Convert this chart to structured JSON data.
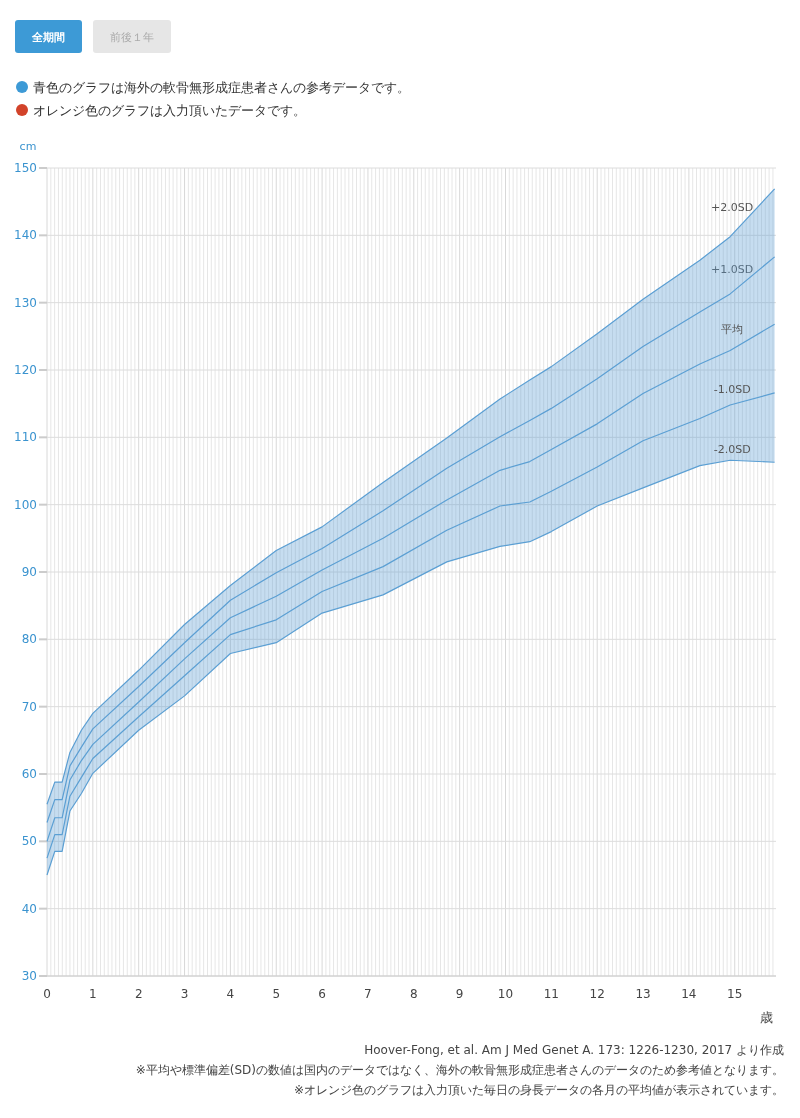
{
  "chart_data": {
    "type": "line",
    "x": [
      0,
      0.17,
      0.33,
      0.5,
      0.75,
      1,
      2,
      3,
      4,
      5,
      6,
      7.33,
      8.72,
      9.88,
      10.53,
      11,
      12,
      13,
      14.24,
      14.9,
      15.87
    ],
    "series": [
      {
        "name": "+2.0SD",
        "color": "#5b9fd3",
        "values": [
          55.5,
          58.8,
          58.8,
          63.2,
          66.5,
          69,
          75.4,
          82.2,
          88,
          93.2,
          96.7,
          103.3,
          109.9,
          115.7,
          118.5,
          120.5,
          125.4,
          130.5,
          136.3,
          139.8,
          146.9
        ]
      },
      {
        "name": "+1.0SD",
        "color": "#5b9fd3",
        "values": [
          52.8,
          56.2,
          56.2,
          61.2,
          64,
          66.7,
          73,
          79.5,
          85.8,
          89.9,
          93.5,
          99.1,
          105.4,
          110.1,
          112.5,
          114.3,
          118.7,
          123.5,
          128.6,
          131.3,
          136.8
        ]
      },
      {
        "name": "平均",
        "color": "#5b9fd3",
        "values": [
          50,
          53.5,
          53.5,
          59.1,
          62,
          64.4,
          70.7,
          77.1,
          83.2,
          86.4,
          90.3,
          95,
          100.7,
          105.1,
          106.4,
          108.2,
          112,
          116.5,
          120.9,
          122.9,
          126.8
        ],
        "lower": [
          45,
          48.5,
          48.5,
          54.5,
          57.1,
          60.1,
          66.5,
          71.6,
          77.9,
          79.5,
          83.9,
          86.6,
          91.5,
          93.8,
          94.5,
          96,
          99.8,
          102.5,
          105.8,
          106.6,
          106.3
        ],
        "upper": [
          55.5,
          58.8,
          58.8,
          63.2,
          66.5,
          69,
          75.4,
          82.2,
          88,
          93.2,
          96.7,
          103.3,
          109.9,
          115.7,
          118.5,
          120.5,
          125.4,
          130.5,
          136.3,
          139.8,
          146.9
        ]
      },
      {
        "name": "-1.0SD",
        "color": "#5b9fd3",
        "values": [
          47.5,
          51,
          51,
          56.7,
          59.5,
          62.3,
          68.5,
          74.6,
          80.7,
          82.9,
          87.1,
          90.8,
          96.2,
          99.8,
          100.4,
          102,
          105.6,
          109.5,
          112.8,
          114.8,
          116.6
        ]
      },
      {
        "name": "-2.0SD",
        "color": "#5b9fd3",
        "values": [
          45,
          48.5,
          48.5,
          54.5,
          57.1,
          60.1,
          66.5,
          71.6,
          77.9,
          79.5,
          83.9,
          86.6,
          91.5,
          93.8,
          94.5,
          96,
          99.8,
          102.5,
          105.8,
          106.6,
          106.3
        ]
      }
    ],
    "xlim": [
      0,
      15.9
    ],
    "xticks": [
      0,
      1,
      2,
      3,
      4,
      5,
      6,
      7,
      8,
      9,
      10,
      11,
      12,
      13,
      14,
      15
    ],
    "ylim": [
      30,
      150
    ],
    "yticks": [
      30,
      40,
      50,
      60,
      70,
      80,
      90,
      100,
      110,
      120,
      130,
      140,
      150
    ],
    "xlabel": "歳",
    "ylabel": "cm",
    "grid": true,
    "marker": "none",
    "line_style": "solid",
    "annotations": [
      "全期間",
      "前後１年",
      "青色のグラフは海外の軟骨無形成症患者さんの参考データです。",
      "オレンジ色のグラフは入力頂いたデータです。",
      "Hoover-Fong, et al. Am J Med Genet A. 173: 1226-1230, 2017 より作成",
      "※平均や標準偏差(SD)の数値は国内のデータではなく、海外の軟骨無形成症患者さんのデータのため参考値となります。",
      "※オレンジ色のグラフは入力頂いた毎日の身長データの各月の平均値が表示されています。"
    ]
  }
}
